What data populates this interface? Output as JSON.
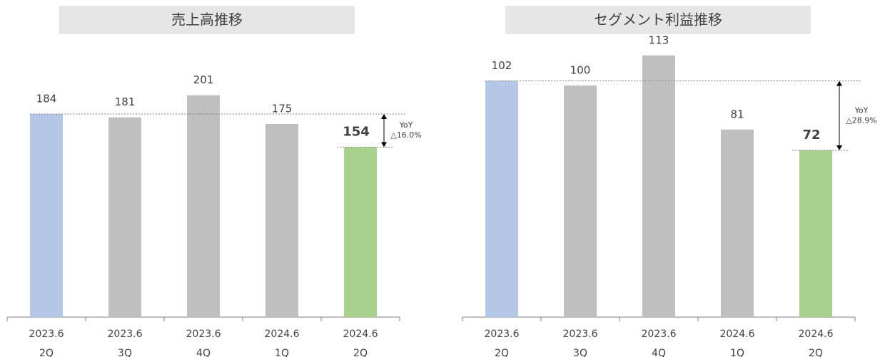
{
  "chart_data": [
    {
      "type": "bar",
      "title": "売上高推移",
      "categories": [
        [
          "2023.6",
          "2Q"
        ],
        [
          "2023.6",
          "3Q"
        ],
        [
          "2023.6",
          "4Q"
        ],
        [
          "2024.6",
          "1Q"
        ],
        [
          "2024.6",
          "2Q"
        ]
      ],
      "values": [
        184,
        181,
        201,
        175,
        154
      ],
      "colors": [
        "#b4c7e7",
        "#bfbfbf",
        "#bfbfbf",
        "#bfbfbf",
        "#a9d18e"
      ],
      "ylim": [
        0,
        215
      ],
      "annotation": [
        "YoY",
        "△16.0%"
      ]
    },
    {
      "type": "bar",
      "title": "セグメント利益推移",
      "categories": [
        [
          "2023.6",
          "2Q"
        ],
        [
          "2023.6",
          "3Q"
        ],
        [
          "2023.6",
          "4Q"
        ],
        [
          "2024.6",
          "1Q"
        ],
        [
          "2024.6",
          "2Q"
        ]
      ],
      "values": [
        102,
        100,
        113,
        81,
        72
      ],
      "colors": [
        "#b4c7e7",
        "#bfbfbf",
        "#bfbfbf",
        "#bfbfbf",
        "#a9d18e"
      ],
      "ylim": [
        0,
        120
      ],
      "annotation": [
        "YoY",
        "△28.9%"
      ]
    }
  ]
}
